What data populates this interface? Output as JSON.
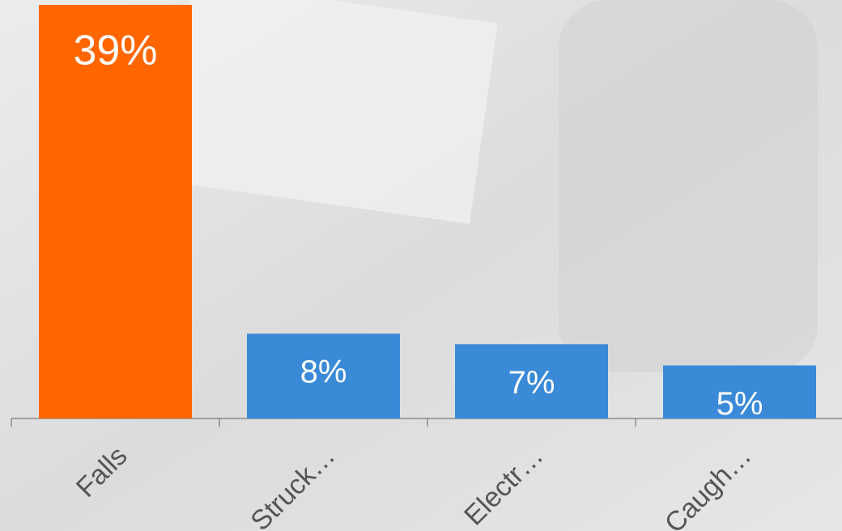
{
  "chart_data": {
    "type": "bar",
    "categories": [
      "Falls",
      "Struck…",
      "Electr…",
      "Caugh…"
    ],
    "values": [
      39,
      8,
      7,
      5
    ],
    "value_labels": [
      "39%",
      "8%",
      "7%",
      "5%"
    ],
    "colors": [
      "#ff6600",
      "#3a8ad8",
      "#3a8ad8",
      "#3a8ad8"
    ]
  }
}
